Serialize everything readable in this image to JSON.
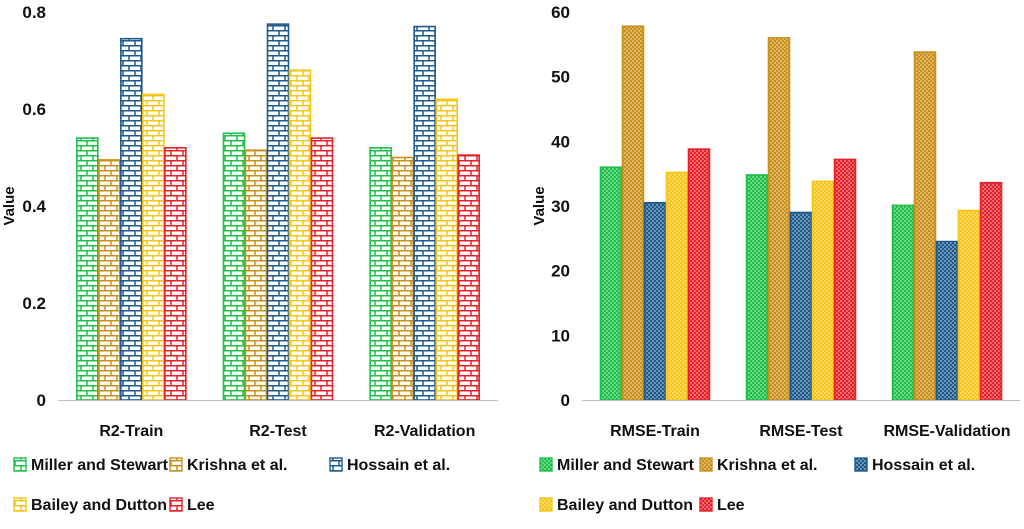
{
  "chart_data": [
    {
      "type": "bar",
      "ylabel": "Value",
      "xlabel": "",
      "ylim": [
        0,
        0.8
      ],
      "yticks": [
        "0",
        "0.2",
        "0.4",
        "0.6",
        "0.8"
      ],
      "ytick_values": [
        0,
        0.2,
        0.4,
        0.6,
        0.8
      ],
      "categories": [
        "R2-Train",
        "R2-Test",
        "R2-Validation"
      ],
      "pattern": "brick",
      "series": [
        {
          "name": "Miller and Stewart",
          "color": "#1fbf4a",
          "values": [
            0.54,
            0.55,
            0.52
          ]
        },
        {
          "name": "Krishna et al.",
          "color": "#c8901a",
          "values": [
            0.495,
            0.515,
            0.5
          ]
        },
        {
          "name": "Hossain et al.",
          "color": "#1f5a8c",
          "values": [
            0.745,
            0.775,
            0.77
          ]
        },
        {
          "name": "Bailey and Dutton",
          "color": "#f5c518",
          "values": [
            0.63,
            0.68,
            0.62
          ]
        },
        {
          "name": "Lee",
          "color": "#e8202a",
          "values": [
            0.52,
            0.54,
            0.505
          ]
        }
      ],
      "legend_position": "bottom"
    },
    {
      "type": "bar",
      "ylabel": "Value",
      "xlabel": "",
      "ylim": [
        0,
        60
      ],
      "yticks": [
        "0",
        "10",
        "20",
        "30",
        "40",
        "50",
        "60"
      ],
      "ytick_values": [
        0,
        10,
        20,
        30,
        40,
        50,
        60
      ],
      "categories": [
        "RMSE-Train",
        "RMSE-Test",
        "RMSE-Validation"
      ],
      "pattern": "dots",
      "series": [
        {
          "name": "Miller and Stewart",
          "color": "#1fbf4a",
          "values": [
            36,
            34.8,
            30.1
          ]
        },
        {
          "name": "Krishna et al.",
          "color": "#c8901a",
          "values": [
            57.8,
            56,
            53.8
          ]
        },
        {
          "name": "Hossain et al.",
          "color": "#1f5a8c",
          "values": [
            30.5,
            29,
            24.5
          ]
        },
        {
          "name": "Bailey and Dutton",
          "color": "#f5c518",
          "values": [
            35.2,
            33.8,
            29.3
          ]
        },
        {
          "name": "Lee",
          "color": "#e8202a",
          "values": [
            38.8,
            37.2,
            33.6
          ]
        }
      ],
      "legend_position": "bottom"
    }
  ]
}
